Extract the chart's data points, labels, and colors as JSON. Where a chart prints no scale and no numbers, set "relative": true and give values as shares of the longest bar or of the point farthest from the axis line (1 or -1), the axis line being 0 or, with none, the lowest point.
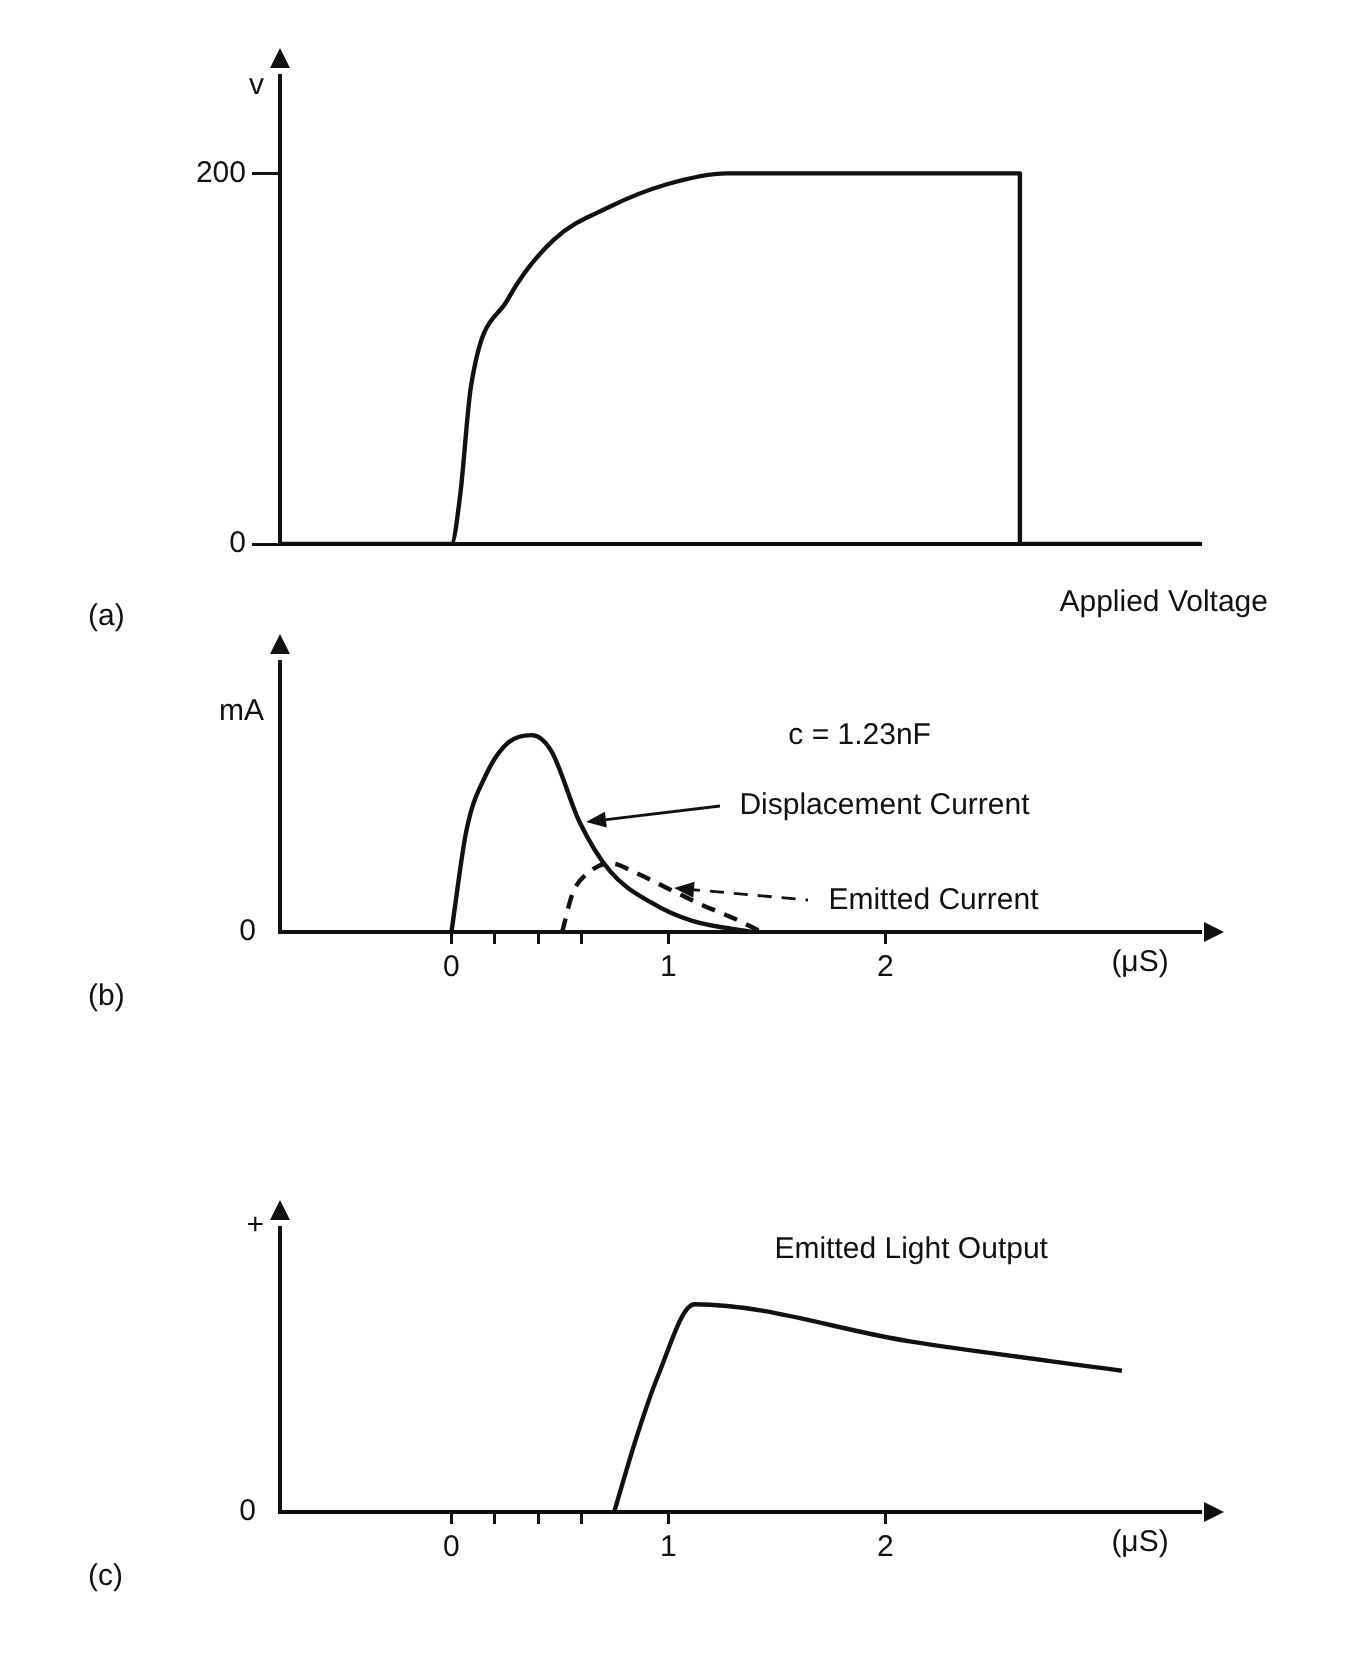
{
  "chart_data": [
    {
      "type": "line",
      "ylabel": "v",
      "x": [
        -0.79,
        0,
        0.04,
        0.09,
        0.26,
        0.47,
        0.73,
        0.99,
        1.27,
        2.62,
        2.62,
        3.45
      ],
      "series": [
        {
          "name": "Applied Voltage",
          "color": "#111111",
          "values": [
            0,
            0,
            26,
            85,
            132,
            164,
            182,
            194,
            200,
            200,
            0,
            0
          ]
        }
      ],
      "xlim": [
        -0.79,
        3.45
      ],
      "ylim": [
        0,
        245
      ],
      "yticks": [
        0,
        200
      ],
      "tick_labels": "y",
      "annotations": [
        "(a)"
      ],
      "line_style": "solid",
      "marker": "none",
      "grid": false
    },
    {
      "type": "line",
      "ylabel": "mA",
      "xlabel": "(μS)",
      "relative": true,
      "series": [
        {
          "name": "Displacement Current",
          "color": "#111111",
          "line_style": "solid",
          "x": [
            0,
            0.07,
            0.16,
            0.26,
            0.37,
            0.46,
            0.59,
            0.73,
            0.92,
            1.11,
            1.39
          ],
          "values": [
            0,
            0.52,
            0.8,
            0.96,
            1,
            0.92,
            0.56,
            0.31,
            0.15,
            0.056,
            0
          ]
        },
        {
          "name": "Emitted Current",
          "color": "#111111",
          "line_style": "dashed",
          "x": [
            0.51,
            0.56,
            0.63,
            0.73,
            0.85,
            1.0,
            1.15,
            1.3,
            1.43
          ],
          "values": [
            0,
            0.2,
            0.3,
            0.35,
            0.3,
            0.22,
            0.14,
            0.07,
            0
          ]
        }
      ],
      "xlim": [
        -0.79,
        3.45
      ],
      "xticks": [
        0,
        {
          "value": 0.2,
          "label": null
        },
        {
          "value": 0.4,
          "label": null
        },
        {
          "value": 0.6,
          "label": null
        },
        1,
        2
      ],
      "annotations": [
        "(b)",
        "0",
        "c = 1.23nF"
      ],
      "marker": "none",
      "grid": false,
      "legend": "right"
    },
    {
      "type": "line",
      "ylabel": "+",
      "xlabel": "(μS)",
      "relative": true,
      "x": [
        0.75,
        0.85,
        0.95,
        1.12,
        2.12,
        3.09
      ],
      "series": [
        {
          "name": "Emitted Light Output",
          "color": "#111111",
          "values": [
            0,
            0.35,
            0.65,
            1,
            0.82,
            0.68
          ]
        }
      ],
      "xlim": [
        -0.79,
        3.45
      ],
      "xticks": [
        0,
        {
          "value": 0.2,
          "label": null
        },
        {
          "value": 0.4,
          "label": null
        },
        {
          "value": 0.6,
          "label": null
        },
        1,
        2
      ],
      "annotations": [
        "(c)",
        "0"
      ],
      "line_style": "solid",
      "marker": "none",
      "grid": false
    }
  ]
}
